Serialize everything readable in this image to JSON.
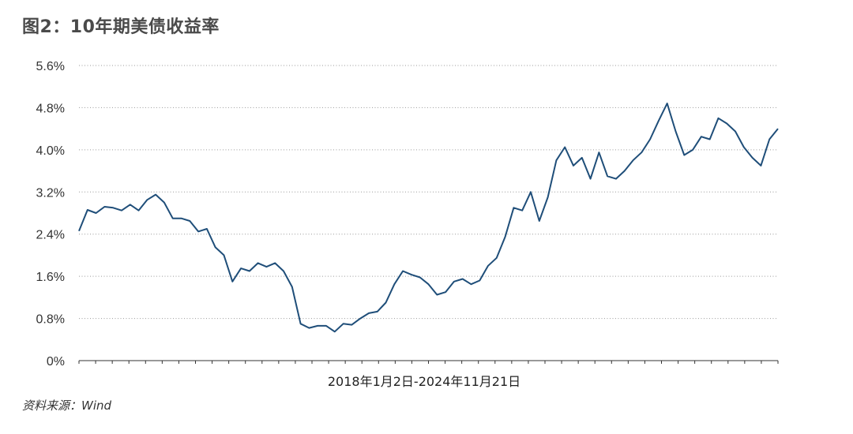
{
  "header": {
    "title": "图2：10年期美债收益率"
  },
  "footer": {
    "source": "资料来源：Wind"
  },
  "chart_data": {
    "type": "line",
    "title": "图2：10年期美债收益率",
    "xlabel": "2018年1月2日-2024年11月21日",
    "ylabel": "",
    "ylim": [
      0,
      5.6
    ],
    "yticks": [
      "0%",
      "0.8%",
      "1.6%",
      "2.4%",
      "3.2%",
      "4.0%",
      "4.8%",
      "5.6%"
    ],
    "ytick_values": [
      0,
      0.8,
      1.6,
      2.4,
      3.2,
      4.0,
      4.8,
      5.6
    ],
    "grid": true,
    "line_color": "#1f4e79",
    "x": [
      "2018-01",
      "2018-02",
      "2018-03",
      "2018-04",
      "2018-05",
      "2018-06",
      "2018-07",
      "2018-08",
      "2018-09",
      "2018-10",
      "2018-11",
      "2018-12",
      "2019-01",
      "2019-02",
      "2019-03",
      "2019-04",
      "2019-05",
      "2019-06",
      "2019-07",
      "2019-08",
      "2019-09",
      "2019-10",
      "2019-11",
      "2019-12",
      "2020-01",
      "2020-02",
      "2020-03",
      "2020-04",
      "2020-05",
      "2020-06",
      "2020-07",
      "2020-08",
      "2020-09",
      "2020-10",
      "2020-11",
      "2020-12",
      "2021-01",
      "2021-02",
      "2021-03",
      "2021-04",
      "2021-05",
      "2021-06",
      "2021-07",
      "2021-08",
      "2021-09",
      "2021-10",
      "2021-11",
      "2021-12",
      "2022-01",
      "2022-02",
      "2022-03",
      "2022-04",
      "2022-05",
      "2022-06",
      "2022-07",
      "2022-08",
      "2022-09",
      "2022-10",
      "2022-11",
      "2022-12",
      "2023-01",
      "2023-02",
      "2023-03",
      "2023-04",
      "2023-05",
      "2023-06",
      "2023-07",
      "2023-08",
      "2023-09",
      "2023-10",
      "2023-11",
      "2023-12",
      "2024-01",
      "2024-02",
      "2024-03",
      "2024-04",
      "2024-05",
      "2024-06",
      "2024-07",
      "2024-08",
      "2024-09",
      "2024-10",
      "2024-11"
    ],
    "series": [
      {
        "values": [
          2.46,
          2.86,
          2.8,
          2.92,
          2.9,
          2.85,
          2.96,
          2.85,
          3.05,
          3.15,
          3.0,
          2.7,
          2.7,
          2.65,
          2.45,
          2.5,
          2.15,
          2.0,
          1.5,
          1.75,
          1.7,
          1.85,
          1.78,
          1.85,
          1.7,
          1.4,
          0.7,
          0.62,
          0.66,
          0.66,
          0.55,
          0.7,
          0.68,
          0.8,
          0.9,
          0.93,
          1.1,
          1.45,
          1.7,
          1.63,
          1.58,
          1.45,
          1.25,
          1.3,
          1.5,
          1.55,
          1.45,
          1.52,
          1.8,
          1.95,
          2.35,
          2.9,
          2.85,
          3.2,
          2.65,
          3.1,
          3.8,
          4.05,
          3.7,
          3.85,
          3.45,
          3.95,
          3.5,
          3.45,
          3.6,
          3.8,
          3.95,
          4.2,
          4.55,
          4.88,
          4.35,
          3.9,
          4.0,
          4.25,
          4.2,
          4.6,
          4.5,
          4.35,
          4.05,
          3.85,
          3.7,
          4.2,
          4.4
        ]
      }
    ]
  }
}
